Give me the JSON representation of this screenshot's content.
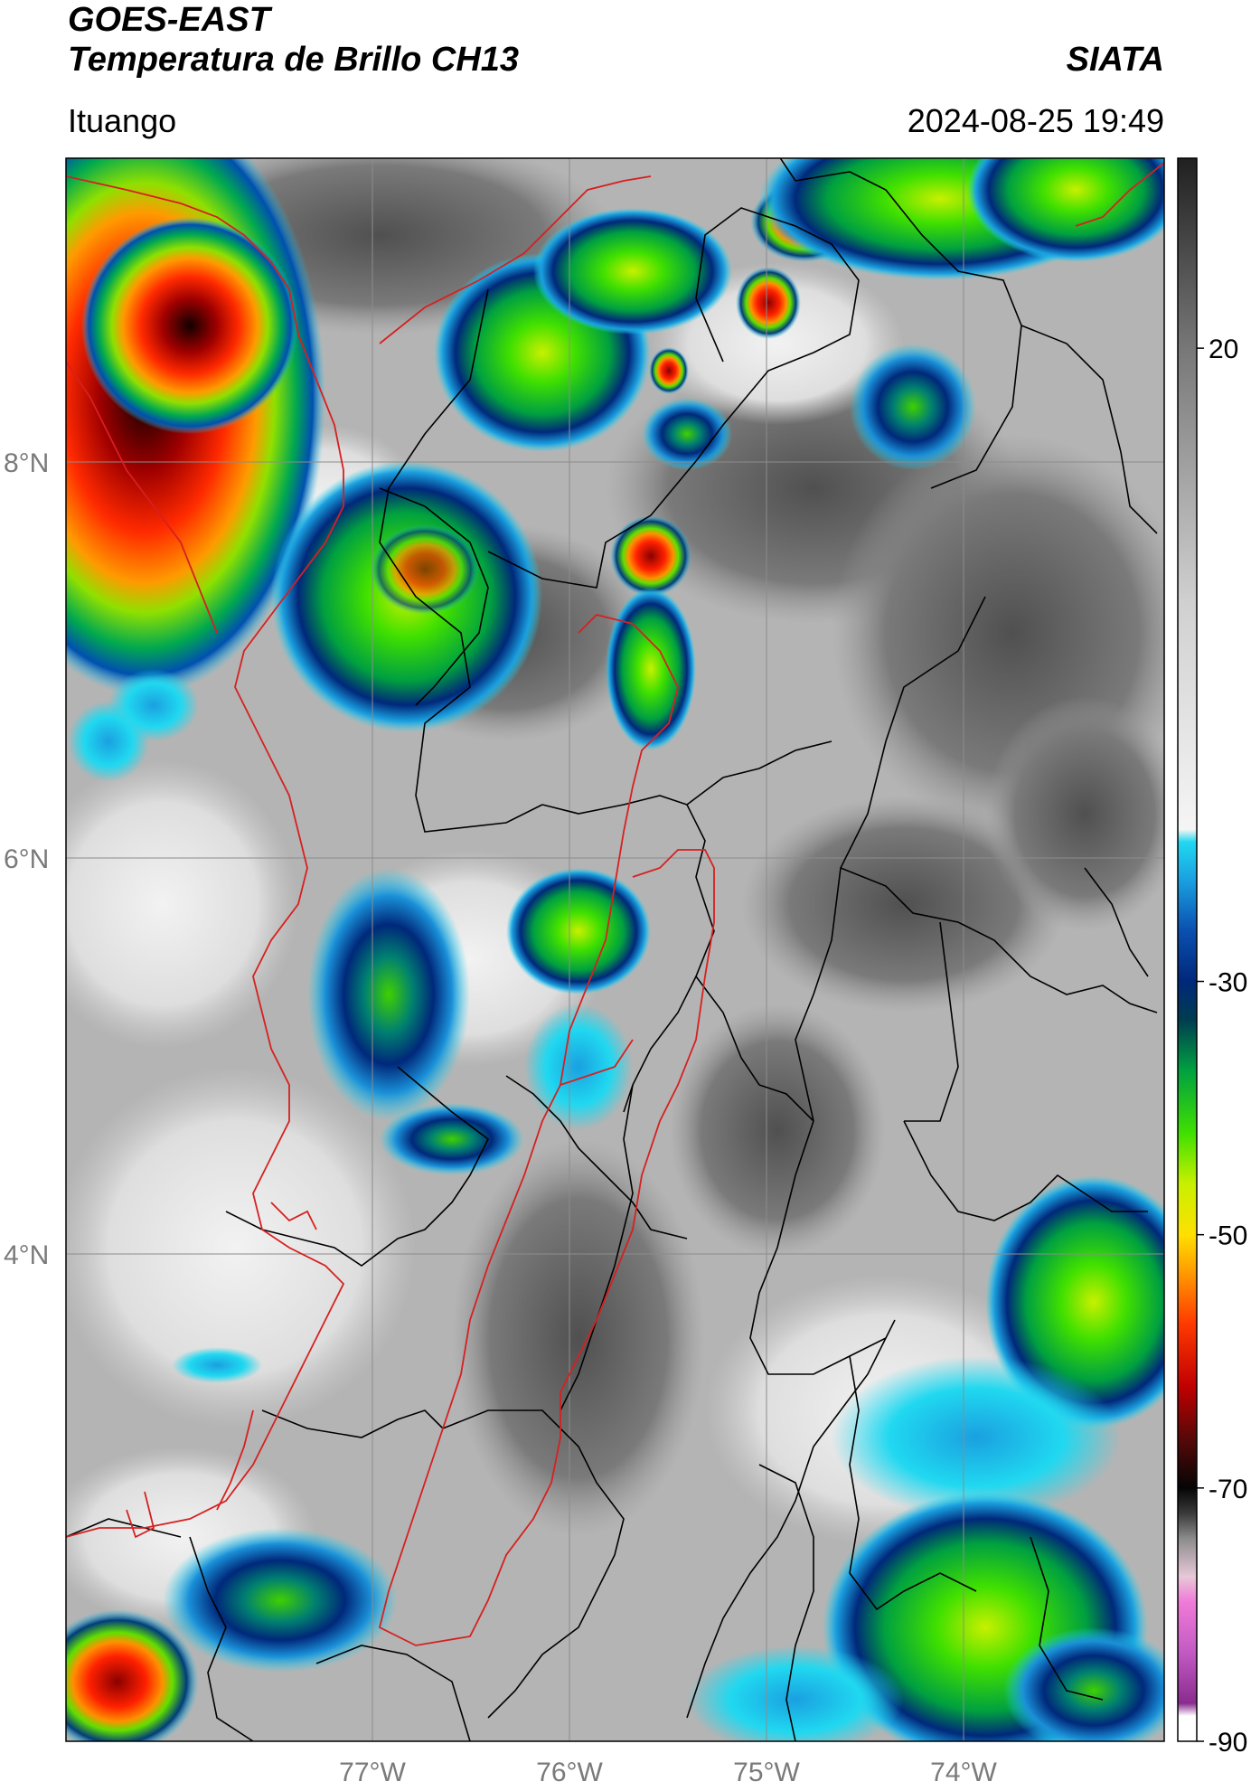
{
  "header": {
    "satellite": "GOES-EAST",
    "product": "Temperatura de Brillo CH13",
    "brand": "SIATA",
    "location": "Ituango",
    "timestamp": "2024-08-25 19:49"
  },
  "map": {
    "lat_range": [
      1.8,
      9.7
    ],
    "lon_range": [
      -78.55,
      -72.97
    ],
    "lat_ticks": [
      {
        "value": 8,
        "label": "8°N"
      },
      {
        "value": 6,
        "label": "6°N"
      },
      {
        "value": 4,
        "label": "4°N"
      }
    ],
    "lon_ticks": [
      {
        "value": -77,
        "label": "77°W"
      },
      {
        "value": -76,
        "label": "76°W"
      },
      {
        "value": -75,
        "label": "75°W"
      },
      {
        "value": -74,
        "label": "74°W"
      }
    ],
    "colors": {
      "border_national": "#d62020",
      "border_departments": "#000000",
      "grid": "#8c8c8c"
    }
  },
  "colorbar": {
    "range": [
      -90,
      35
    ],
    "ticks": [
      {
        "value": 20,
        "label": "20"
      },
      {
        "value": -30,
        "label": "-30"
      },
      {
        "value": -50,
        "label": "-50"
      },
      {
        "value": -70,
        "label": "-70"
      },
      {
        "value": -90,
        "label": "-90"
      }
    ],
    "stops": [
      {
        "value": -90,
        "color": "#ffffff"
      },
      {
        "value": -88,
        "color": "#ffffff"
      },
      {
        "value": -87,
        "color": "#8a2b8f"
      },
      {
        "value": -83,
        "color": "#c25ac3"
      },
      {
        "value": -79,
        "color": "#f07ad8"
      },
      {
        "value": -77,
        "color": "#e8c8d8"
      },
      {
        "value": -74,
        "color": "#8c8c8c"
      },
      {
        "value": -72,
        "color": "#3a3a3a"
      },
      {
        "value": -70,
        "color": "#050505"
      },
      {
        "value": -66,
        "color": "#5a0808"
      },
      {
        "value": -62,
        "color": "#c00000"
      },
      {
        "value": -57,
        "color": "#ff3a00"
      },
      {
        "value": -53,
        "color": "#ff9a00"
      },
      {
        "value": -50,
        "color": "#ffe000"
      },
      {
        "value": -46,
        "color": "#c8f000"
      },
      {
        "value": -42,
        "color": "#40e000"
      },
      {
        "value": -37,
        "color": "#00a040"
      },
      {
        "value": -33,
        "color": "#003c50"
      },
      {
        "value": -30,
        "color": "#00287a"
      },
      {
        "value": -26,
        "color": "#0a50b0"
      },
      {
        "value": -22,
        "color": "#1aa0e0"
      },
      {
        "value": -19,
        "color": "#20d8f0"
      },
      {
        "value": -18,
        "color": "#f5f5f5"
      },
      {
        "value": 0,
        "color": "#d0d0d0"
      },
      {
        "value": 20,
        "color": "#777777"
      },
      {
        "value": 35,
        "color": "#202020"
      }
    ]
  }
}
